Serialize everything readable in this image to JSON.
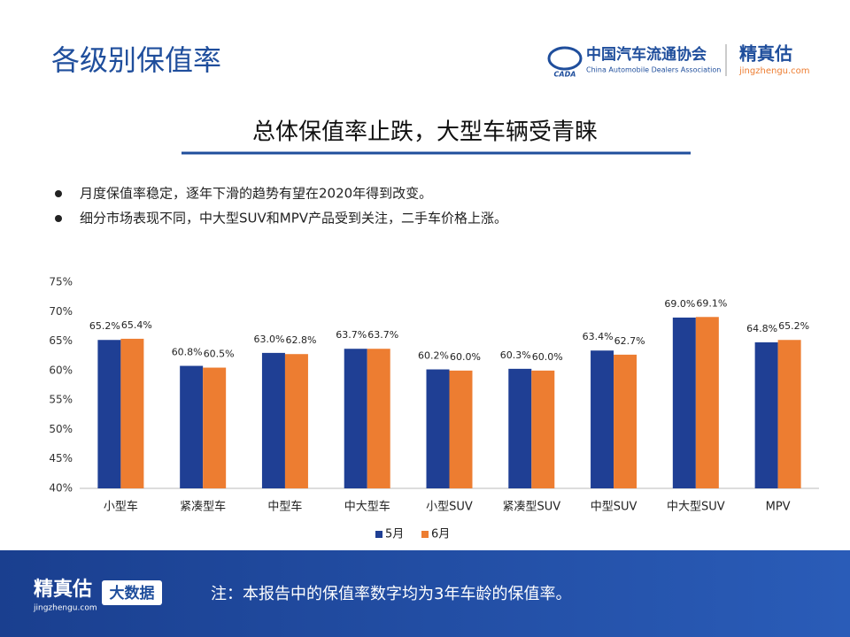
{
  "header": {
    "title": "各级别保值率",
    "org_name": "中国汽车流通协会",
    "org_english": "China Automobile Dealers Association",
    "org_abbr": "CADA",
    "brand": "精真估",
    "brand_url": "jingzhengu.com"
  },
  "subtitle": "总体保值率止跌，大型车辆受青睐",
  "bullets": [
    "月度保值率稳定，逐年下滑的趋势有望在2020年得到改变。",
    "细分市场表现不同，中大型SUV和MPV产品受到关注，二手车价格上涨。"
  ],
  "chart_data": {
    "type": "bar",
    "categories": [
      "小型车",
      "紧凑型车",
      "中型车",
      "中大型车",
      "小型SUV",
      "紧凑型SUV",
      "中型SUV",
      "中大型SUV",
      "MPV"
    ],
    "series": [
      {
        "name": "5月",
        "color": "#1f3f94",
        "values": [
          65.2,
          60.8,
          63.0,
          63.7,
          60.2,
          60.3,
          63.4,
          69.0,
          64.8
        ],
        "value_labels": [
          "65.2%",
          "60.8%",
          "63.0%",
          "63.7%",
          "60.2%",
          "60.3%",
          "63.4%",
          "69.0%",
          "64.8%"
        ]
      },
      {
        "name": "6月",
        "color": "#ed7d31",
        "values": [
          65.4,
          60.5,
          62.8,
          63.7,
          60.0,
          60.0,
          62.7,
          69.1,
          65.2
        ],
        "value_labels": [
          "65.4%",
          "60.5%",
          "62.8%",
          "63.7%",
          "60.0%",
          "60.0%",
          "62.7%",
          "69.1%",
          "65.2%"
        ]
      }
    ],
    "ylim": [
      40,
      75
    ],
    "yticks": [
      {
        "value": 40,
        "label": "40%"
      },
      {
        "value": 45,
        "label": "45%"
      },
      {
        "value": 50,
        "label": "50%"
      },
      {
        "value": 55,
        "label": "55%"
      },
      {
        "value": 60,
        "label": "60%"
      },
      {
        "value": 65,
        "label": "65%"
      },
      {
        "value": 70,
        "label": "70%"
      },
      {
        "value": 75,
        "label": "75%"
      }
    ],
    "grid": false,
    "legend": "bottom"
  },
  "footer": {
    "brand": "精真估",
    "brand_url": "jingzhengu.com",
    "tag": "大数据",
    "note": "注：本报告中的保值率数字均为3年车龄的保值率。"
  }
}
